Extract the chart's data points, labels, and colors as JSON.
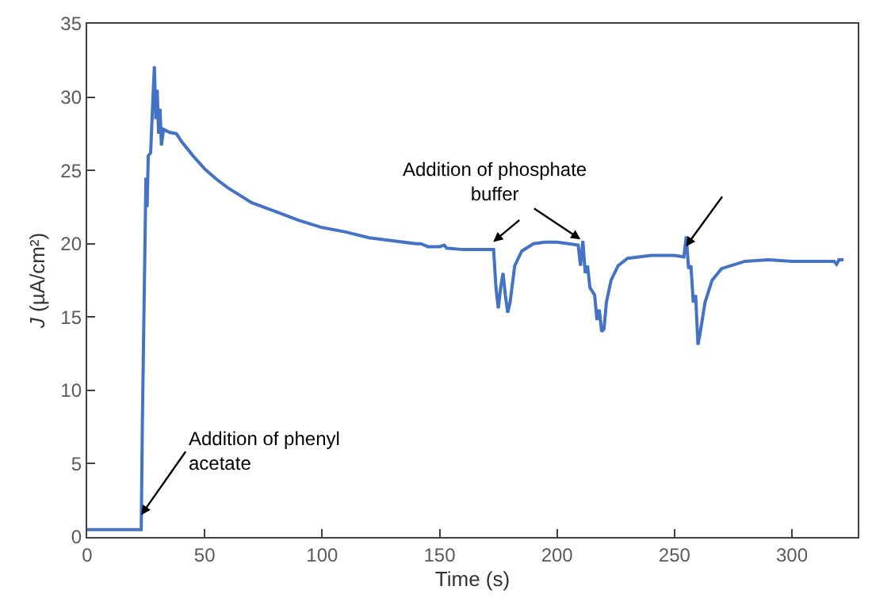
{
  "chart_data": {
    "type": "line",
    "xlabel": "Time (s)",
    "ylabel": "J (µA/cm²)",
    "x": [
      0,
      23,
      23.5,
      24.5,
      25,
      25.5,
      26,
      27,
      28,
      28.6,
      29.2,
      29.8,
      30.4,
      31,
      31.6,
      32.5,
      35,
      38,
      40,
      45,
      50,
      55,
      60,
      70,
      80,
      90,
      100,
      110,
      120,
      130,
      140,
      142,
      145,
      150,
      152,
      153,
      160,
      173,
      174,
      175,
      176,
      177,
      178,
      179,
      180,
      182,
      185,
      190,
      195,
      200,
      205,
      209,
      210,
      211,
      212,
      213,
      214,
      216,
      217,
      218,
      219,
      220,
      221,
      223,
      226,
      230,
      240,
      250,
      254,
      255,
      256,
      257,
      258,
      259,
      260,
      261,
      263,
      266,
      270,
      280,
      290,
      300,
      310,
      318,
      319,
      320,
      322
    ],
    "series": [
      {
        "color": "#4472c4",
        "values": [
          0.5,
          0.5,
          8,
          19,
          24.5,
          22.5,
          26,
          26.2,
          30,
          32.1,
          28.5,
          30.5,
          27.5,
          29.2,
          26.7,
          27.8,
          27.6,
          27.5,
          27.0,
          26.0,
          25.1,
          24.4,
          23.8,
          22.8,
          22.2,
          21.6,
          21.1,
          20.8,
          20.4,
          20.2,
          20.0,
          20.0,
          19.8,
          19.8,
          19.9,
          19.7,
          19.6,
          19.6,
          17,
          15.6,
          17,
          18,
          16.5,
          15.3,
          16,
          18.5,
          19.5,
          20.0,
          20.1,
          20.1,
          20.0,
          19.9,
          18.5,
          20.2,
          18,
          18.5,
          17,
          16.5,
          14.8,
          15.5,
          14,
          14.2,
          16,
          17.5,
          18.5,
          19,
          19.2,
          19.2,
          19.1,
          20.5,
          18.3,
          18.5,
          16,
          16.5,
          13.1,
          14,
          16,
          17.5,
          18.3,
          18.8,
          18.9,
          18.8,
          18.8,
          18.8,
          18.6,
          18.9,
          18.9
        ]
      }
    ],
    "xlim": [
      0,
      328
    ],
    "xticks": [
      0,
      50,
      100,
      150,
      200,
      250,
      300
    ],
    "ylim": [
      0,
      35
    ],
    "yticks": [
      0,
      5,
      10,
      15,
      20,
      25,
      30,
      35
    ],
    "marker": "none",
    "line_style": "solid",
    "annotations": [
      {
        "text": "Addition of phenyl\nacetate",
        "x": 23,
        "y": 1.5
      },
      {
        "text": "Addition of phosphate\nbuffer",
        "x": 210,
        "y": 20.3
      }
    ]
  }
}
